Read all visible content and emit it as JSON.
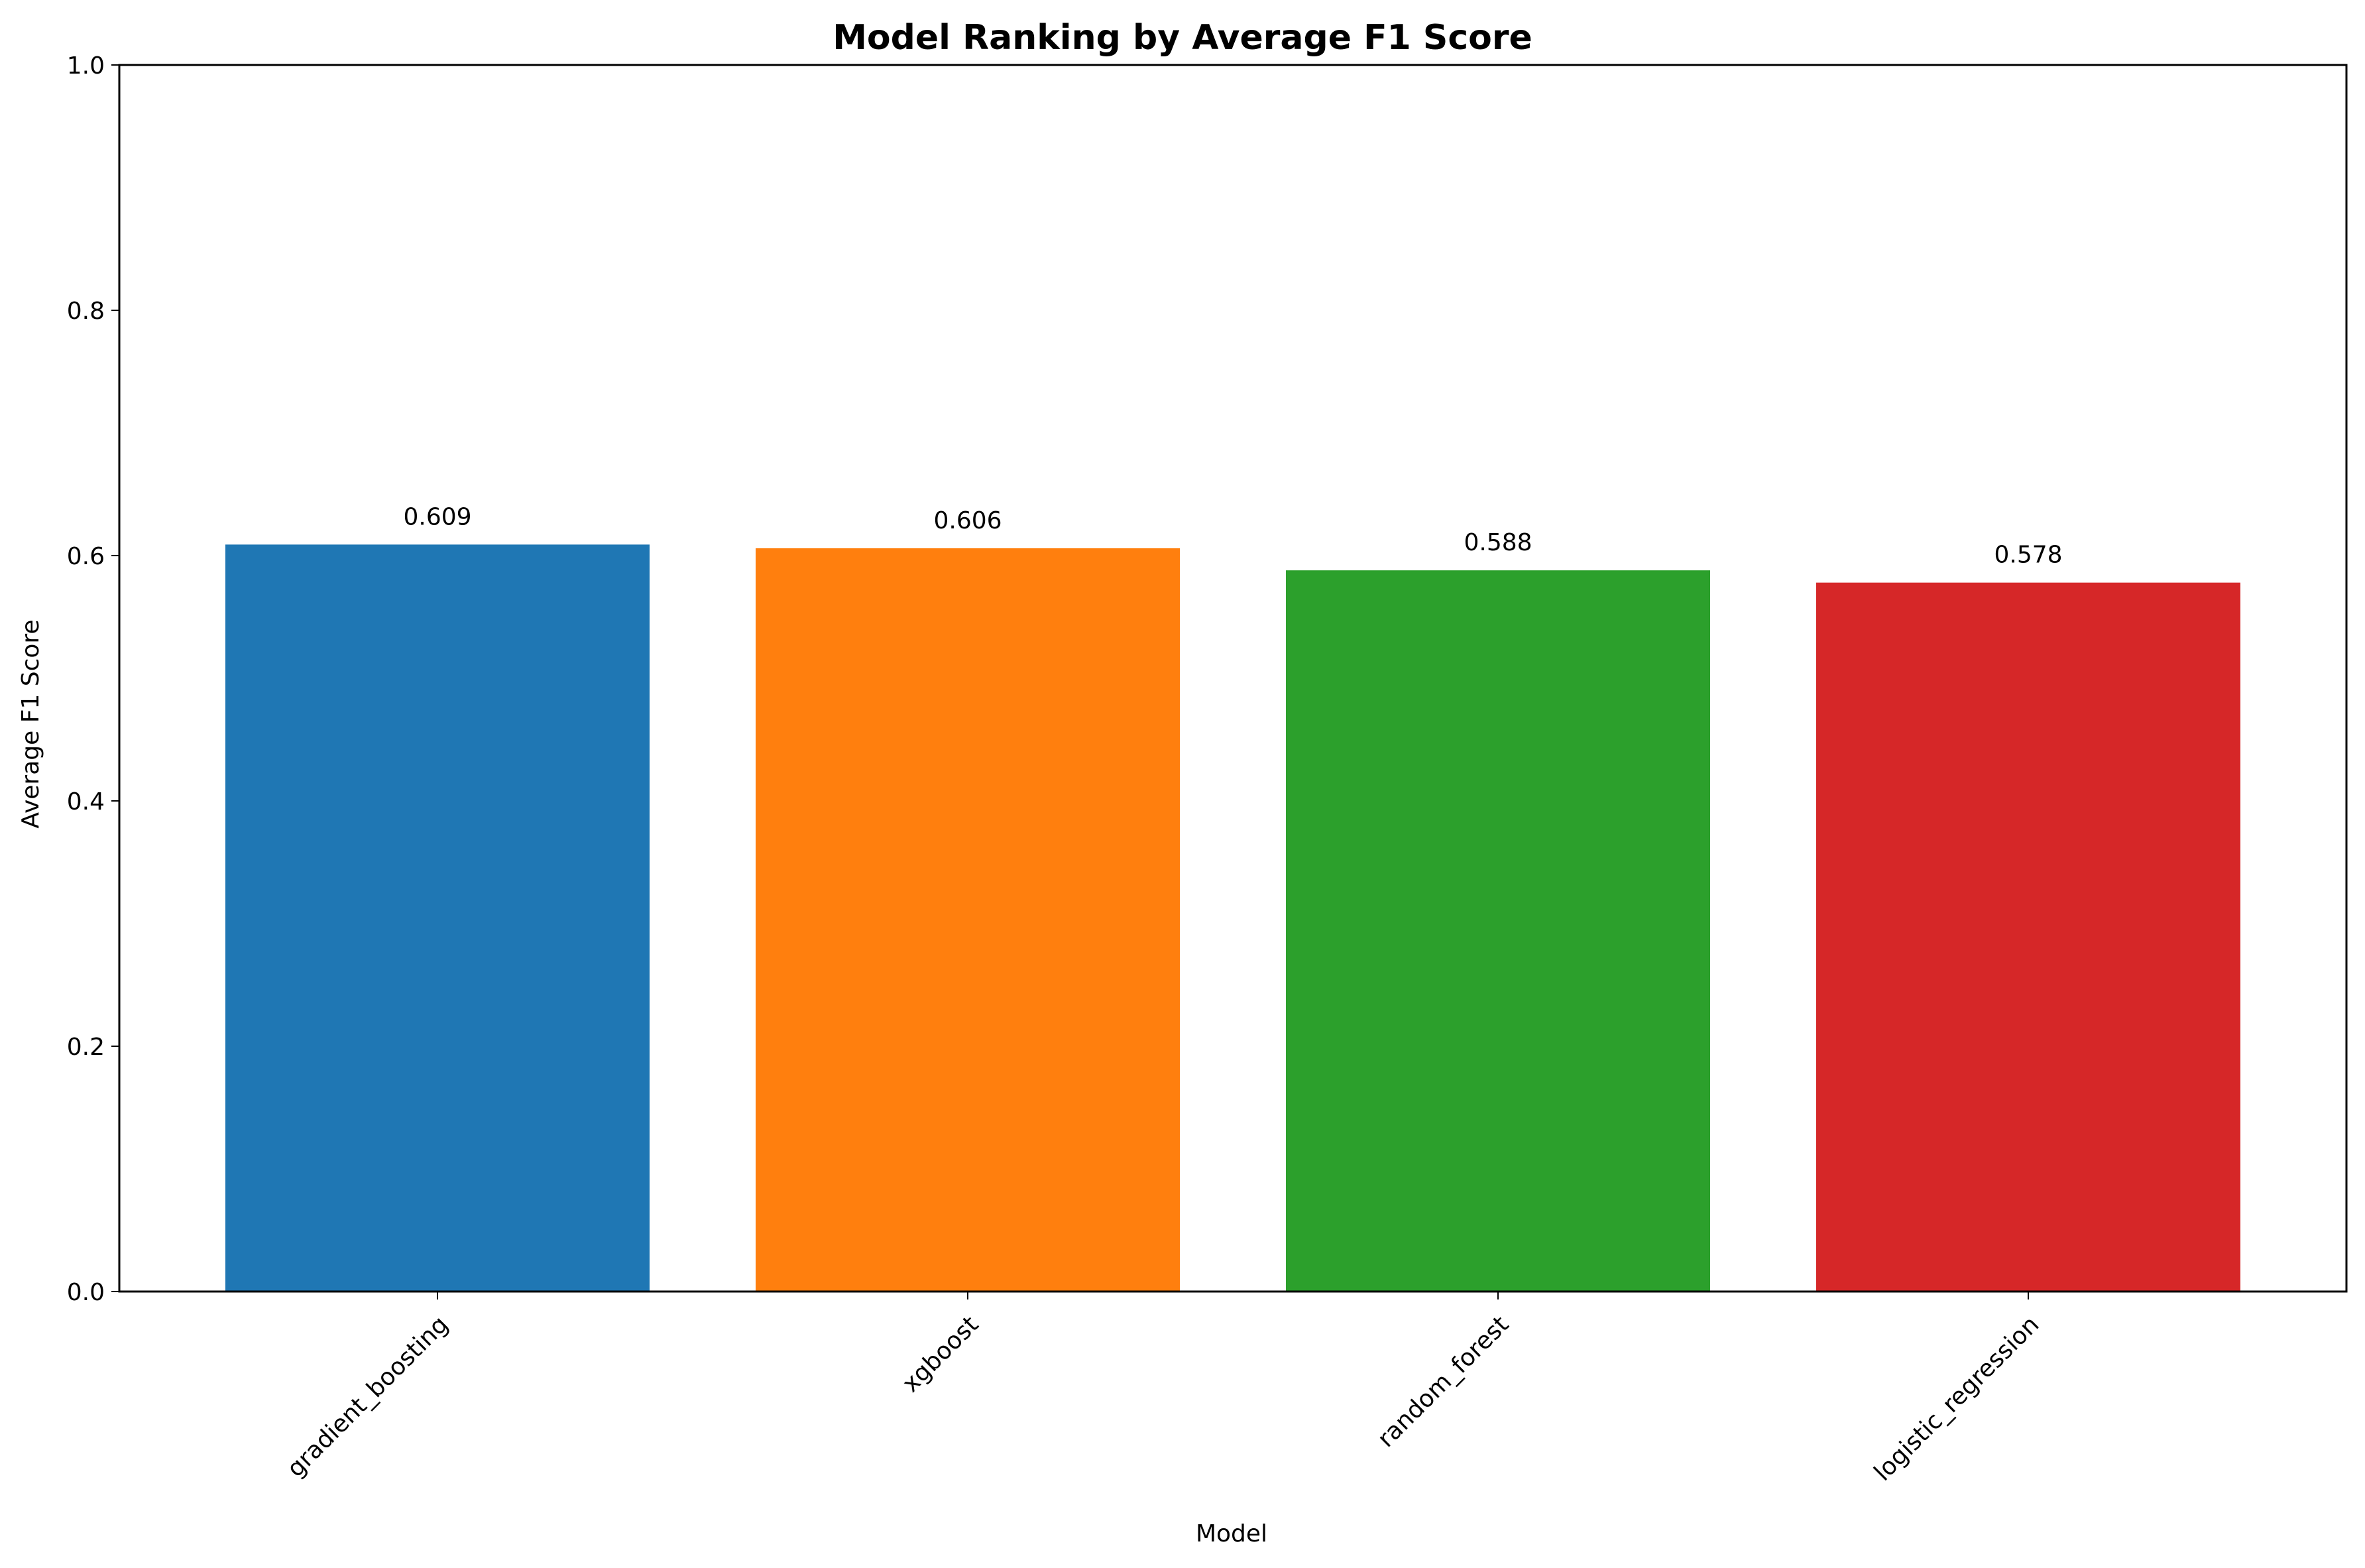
{
  "chart_data": {
    "type": "bar",
    "title": "Model Ranking by Average F1 Score",
    "xlabel": "Model",
    "ylabel": "Average F1 Score",
    "categories": [
      "gradient_boosting",
      "xgboost",
      "random_forest",
      "logistic_regression"
    ],
    "values": [
      0.609,
      0.606,
      0.588,
      0.578
    ],
    "value_labels": [
      "0.609",
      "0.606",
      "0.588",
      "0.578"
    ],
    "colors": [
      "#1f77b4",
      "#ff7f0e",
      "#2ca02c",
      "#d62728"
    ],
    "ylim": [
      0,
      1.0
    ],
    "yticks": [
      0.0,
      0.2,
      0.4,
      0.6,
      0.8,
      1.0
    ],
    "ytick_labels": [
      "0.0",
      "0.2",
      "0.4",
      "0.6",
      "0.8",
      "1.0"
    ],
    "x_tick_rotation_deg": 45,
    "grid": false,
    "legend": "none"
  }
}
